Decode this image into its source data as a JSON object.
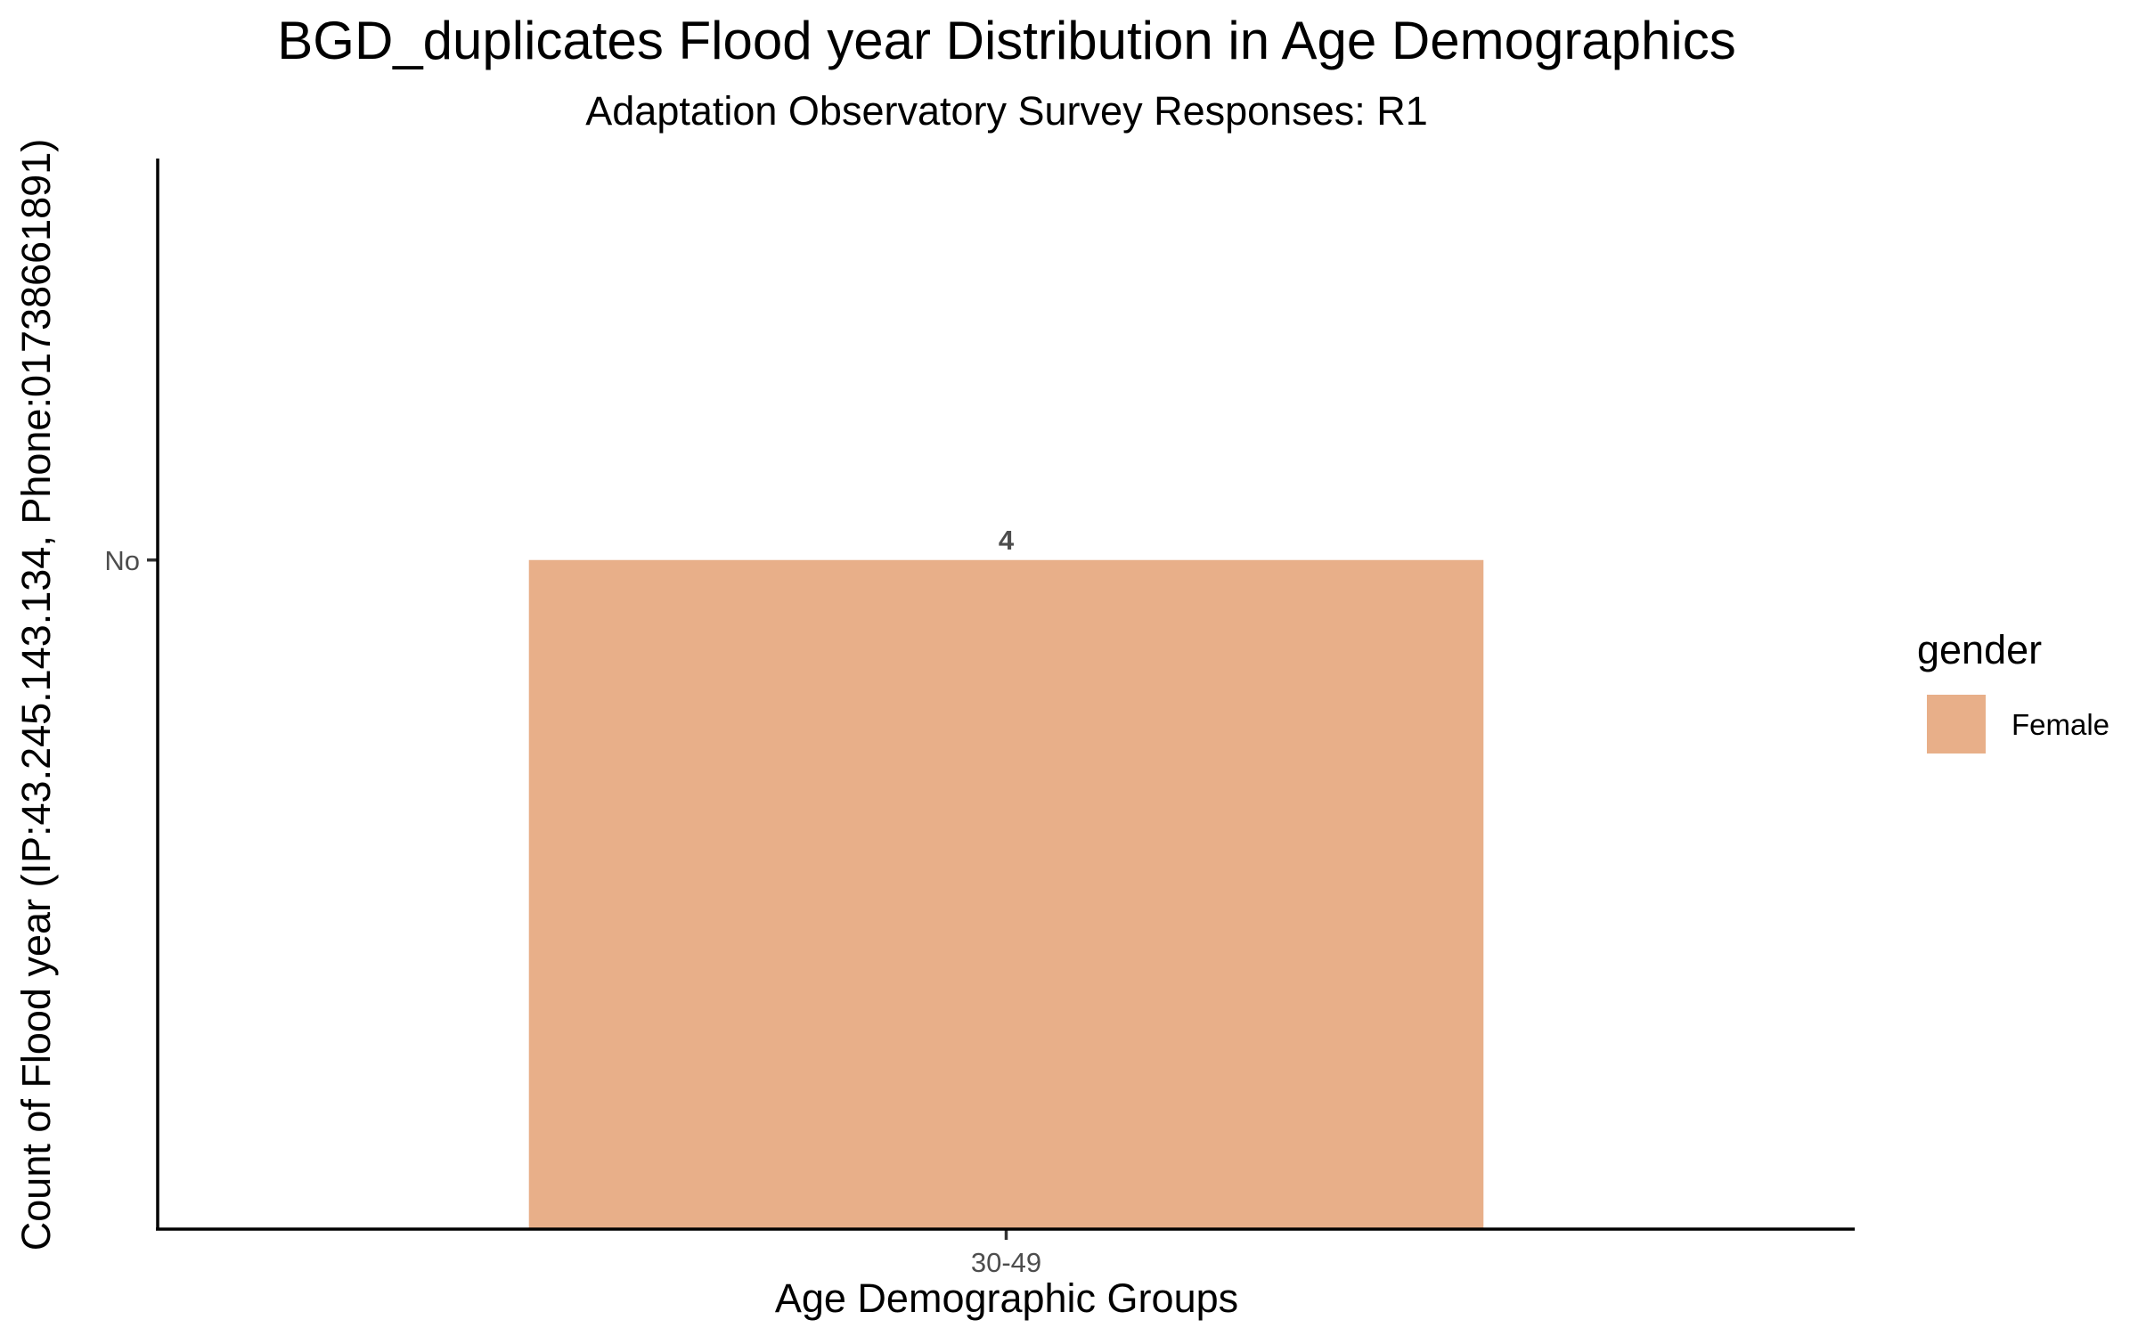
{
  "chart_data": {
    "type": "bar",
    "title": "BGD_duplicates Flood year Distribution in Age Demographics",
    "subtitle": "Adaptation Observatory Survey Responses: R1",
    "xlabel": "Age Demographic Groups",
    "ylabel": "Count of Flood year (IP:43.245.143.134, Phone:01738661891)",
    "categories": [
      "30-49"
    ],
    "y_categories": [
      "No"
    ],
    "series": [
      {
        "name": "Female",
        "color": "#e8af89",
        "values": [
          "No"
        ],
        "data_labels": [
          "4"
        ]
      }
    ],
    "legend": {
      "title": "gender",
      "placement": "right"
    },
    "grid": false
  }
}
